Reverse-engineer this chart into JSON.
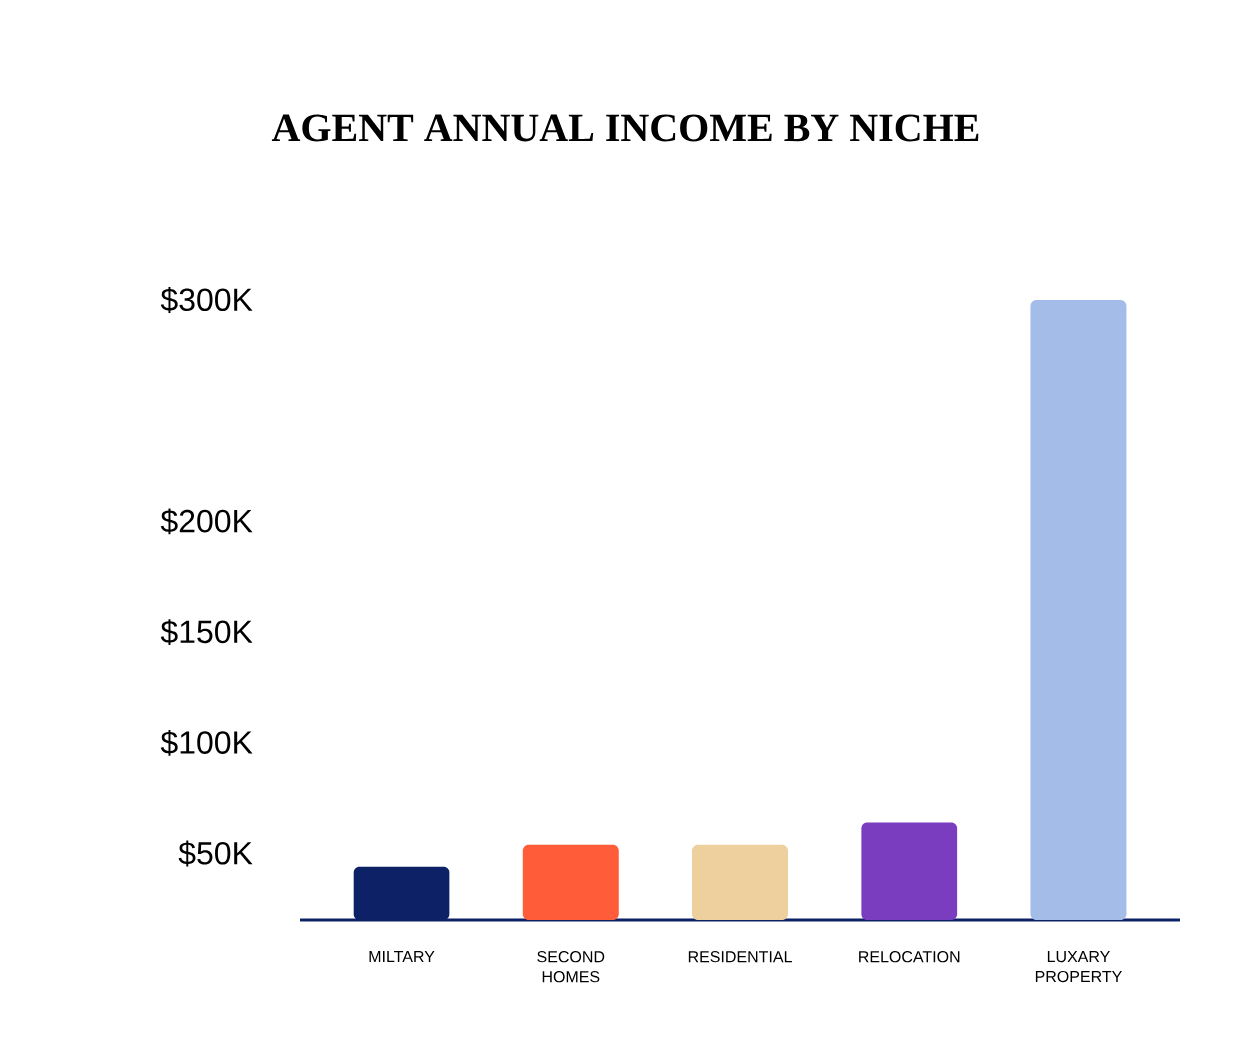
{
  "chart_data": {
    "type": "bar",
    "title": "AGENT ANNUAL INCOME BY NICHE",
    "categories": [
      "MILTARY",
      "SECOND HOMES",
      "RESIDENTIAL",
      "RELOCATION",
      "LUXARY PROPERTY"
    ],
    "values": [
      44,
      54,
      54,
      64,
      300
    ],
    "colors": [
      "#0d2266",
      "#ff5c3a",
      "#eed09e",
      "#7a3dbf",
      "#a4bde8"
    ],
    "ylim": [
      20,
      300
    ],
    "yticks": [
      {
        "value": 50,
        "label": "$50K"
      },
      {
        "value": 100,
        "label": "$100K"
      },
      {
        "value": 150,
        "label": "$150K"
      },
      {
        "value": 200,
        "label": "$200K"
      },
      {
        "value": 300,
        "label": "$300K"
      }
    ],
    "grid": false
  }
}
